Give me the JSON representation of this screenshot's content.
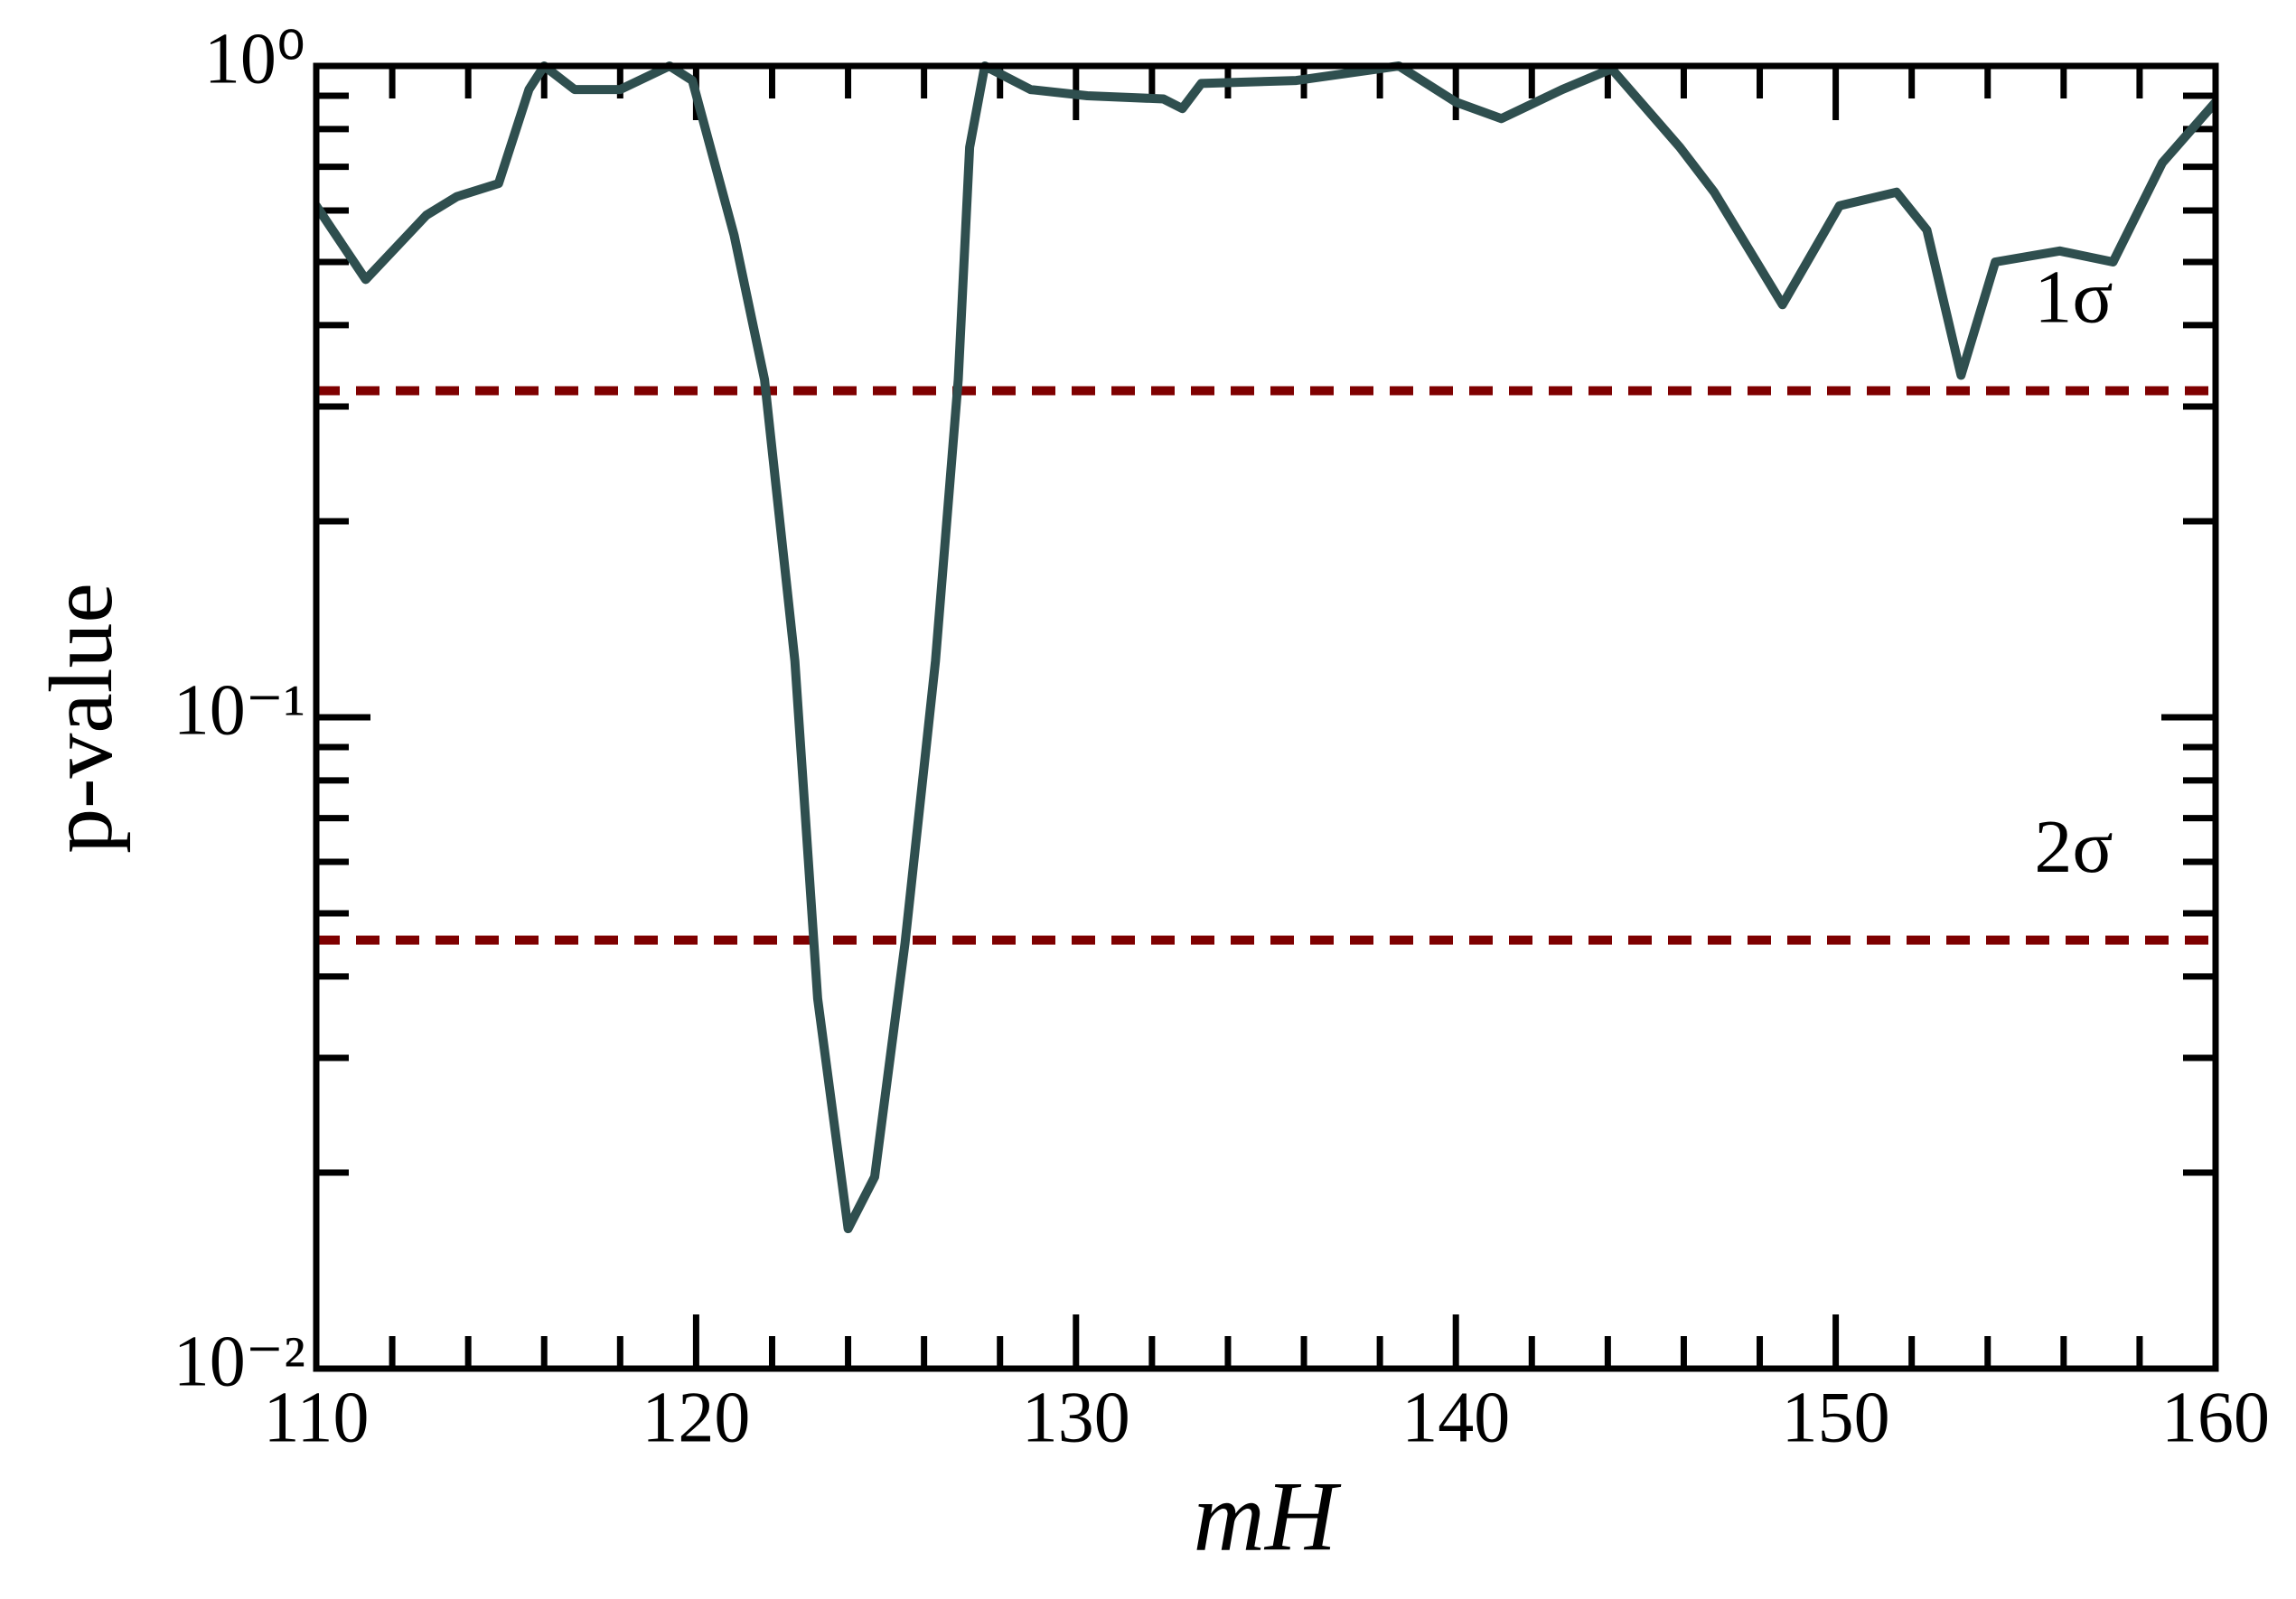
{
  "chart_data": {
    "type": "line",
    "xlabel": "mH",
    "ylabel": "p-value",
    "log_y": true,
    "xlim": [
      110,
      160
    ],
    "ylim": [
      0.01,
      1
    ],
    "xticks": [
      110,
      120,
      130,
      140,
      150,
      160
    ],
    "yticks": [
      {
        "value": 1,
        "label": "10⁰"
      },
      {
        "value": 0.1,
        "label": "10⁻¹"
      },
      {
        "value": 0.01,
        "label": "10⁻²"
      }
    ],
    "series": [
      {
        "color": "#2f4f4f",
        "x": [
          110,
          111.3,
          112.9,
          113.7,
          114.8,
          115.6,
          116.0,
          116.8,
          118.0,
          119.3,
          119.9,
          121.0,
          121.8,
          122.6,
          123.2,
          124.0,
          124.7,
          125.5,
          126.3,
          126.9,
          127.2,
          127.6,
          128.8,
          130.3,
          132.3,
          132.8,
          133.3,
          135.8,
          138.5,
          140.0,
          141.2,
          142.8,
          144.1,
          145.9,
          146.8,
          148.6,
          150.1,
          151.6,
          152.4,
          153.3,
          154.2,
          155.9,
          157.3,
          158.6,
          160
        ],
        "values": [
          0.61,
          0.47,
          0.59,
          0.63,
          0.66,
          0.92,
          1.0,
          0.92,
          0.92,
          1.0,
          0.95,
          0.55,
          0.33,
          0.122,
          0.037,
          0.0164,
          0.0197,
          0.045,
          0.122,
          0.33,
          0.75,
          1.0,
          0.92,
          0.9,
          0.89,
          0.86,
          0.94,
          0.95,
          1.0,
          0.88,
          0.83,
          0.92,
          0.99,
          0.75,
          0.64,
          0.43,
          0.61,
          0.64,
          0.56,
          0.335,
          0.5,
          0.52,
          0.5,
          0.71,
          0.88
        ]
      }
    ],
    "hlines": [
      {
        "value": 0.3173,
        "label": "1σ",
        "color": "#7f0000"
      },
      {
        "value": 0.0455,
        "label": "2σ",
        "color": "#7f0000"
      }
    ]
  }
}
